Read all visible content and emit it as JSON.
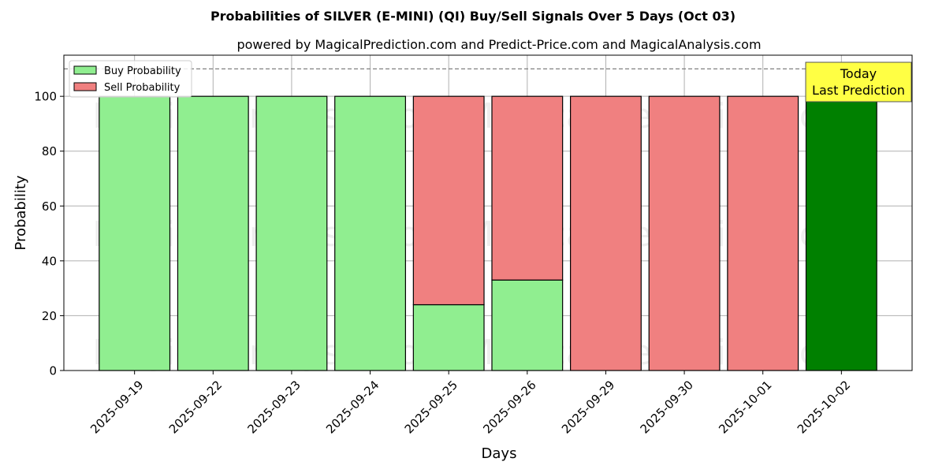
{
  "chart_data": {
    "type": "bar",
    "title": "Probabilities of SILVER (E-MINI) (QI) Buy/Sell Signals Over 5 Days (Oct 03)",
    "subtitle": "powered by MagicalPrediction.com and Predict-Price.com and MagicalAnalysis.com",
    "xlabel": "Days",
    "ylabel": "Probability",
    "ylim": [
      0,
      115
    ],
    "yticks": [
      0,
      20,
      40,
      60,
      80,
      100
    ],
    "grid": true,
    "legend_position": "top-left",
    "stacked": true,
    "categories": [
      "2025-09-19",
      "2025-09-22",
      "2025-09-23",
      "2025-09-24",
      "2025-09-25",
      "2025-09-26",
      "2025-09-29",
      "2025-09-30",
      "2025-10-01",
      "2025-10-02"
    ],
    "series": [
      {
        "name": "Buy Probability",
        "color": "#90ee90",
        "values": [
          100,
          100,
          100,
          100,
          24,
          33,
          0,
          0,
          0,
          100
        ]
      },
      {
        "name": "Sell Probability",
        "color": "#f08080",
        "values": [
          0,
          0,
          0,
          0,
          76,
          67,
          100,
          100,
          100,
          0
        ]
      }
    ],
    "highlight": {
      "category": "2025-10-02",
      "color": "#008000"
    },
    "reference_line": {
      "y": 110,
      "style": "dashed"
    },
    "annotation": {
      "lines": [
        "Today",
        "Last Prediction"
      ],
      "color": "#ffff44"
    },
    "watermarks": [
      "MagicalAnalysis.com",
      "MagicalPrediction.com"
    ]
  }
}
